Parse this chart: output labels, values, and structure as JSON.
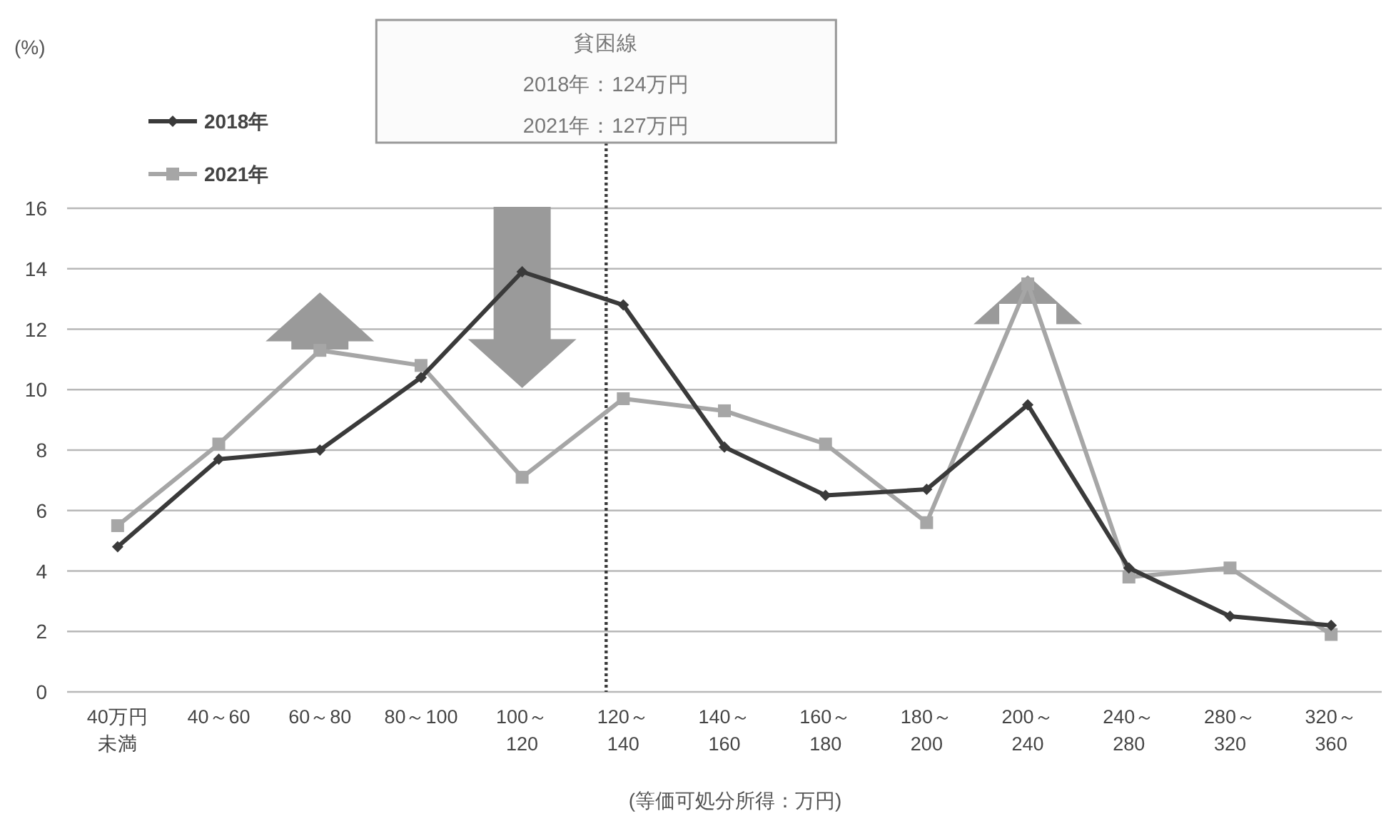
{
  "chart_data": {
    "type": "line",
    "xlabel": "(等価可処分所得：万円)",
    "annotations": [
      "(%)"
    ],
    "categories": [
      "40万円未満",
      "40～60",
      "60～80",
      "80～100",
      "100～\n120",
      "120～\n140",
      "140～\n160",
      "160～\n180",
      "180～\n200",
      "200～\n240",
      "240～\n280",
      "280～\n320",
      "320～\n360"
    ],
    "series": [
      {
        "name": "2018年",
        "color": "#3a3a3a",
        "marker": "diamond",
        "values": [
          4.8,
          7.7,
          8.0,
          10.4,
          13.9,
          12.8,
          8.1,
          6.5,
          6.7,
          9.5,
          4.1,
          2.5,
          2.2
        ]
      },
      {
        "name": "2021年",
        "color": "#a6a6a6",
        "marker": "square",
        "values": [
          5.5,
          8.2,
          11.3,
          10.8,
          7.1,
          9.7,
          9.3,
          8.2,
          5.6,
          13.5,
          3.8,
          4.1,
          1.9
        ]
      }
    ],
    "ylim": [
      0,
      16
    ],
    "yticks": [
      0,
      2,
      4,
      6,
      8,
      10,
      12,
      14,
      16
    ],
    "grid": "y",
    "legend": "top left",
    "line_style": "solid",
    "ref_lines": [
      {
        "axis": "x",
        "value": "120～\n140",
        "label": "貧困線\n2018年：124万円\n2021年：127万円",
        "color": "#3a3a3a",
        "line_style": "dotted"
      }
    ]
  }
}
